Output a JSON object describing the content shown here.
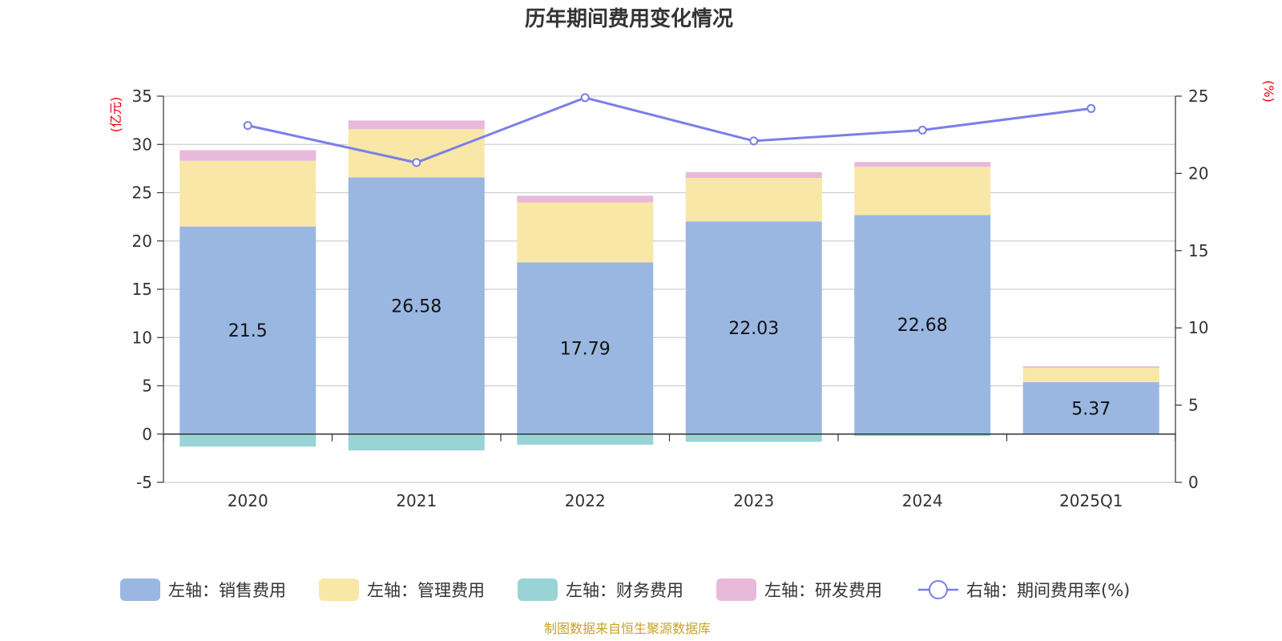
{
  "chart_data": {
    "type": "bar",
    "title": "历年期间费用变化情况",
    "categories": [
      "2020",
      "2021",
      "2022",
      "2023",
      "2024",
      "2025Q1"
    ],
    "series": [
      {
        "name": "左轴：销售费用",
        "axis": "left",
        "type": "bar",
        "color": "#9ab7e2",
        "values": [
          21.5,
          26.58,
          17.79,
          22.03,
          22.68,
          5.37
        ]
      },
      {
        "name": "左轴：管理费用",
        "axis": "left",
        "type": "bar",
        "color": "#f8e7a6",
        "values": [
          6.8,
          5.0,
          6.2,
          4.5,
          5.0,
          1.5
        ]
      },
      {
        "name": "左轴：财务费用",
        "axis": "left",
        "type": "bar",
        "color": "#98d4d6",
        "values": [
          -1.3,
          -1.7,
          -1.1,
          -0.8,
          -0.2,
          -0.05
        ]
      },
      {
        "name": "左轴：研发费用",
        "axis": "left",
        "type": "bar",
        "color": "#e8b9db",
        "values": [
          1.1,
          0.9,
          0.7,
          0.6,
          0.5,
          0.15
        ]
      },
      {
        "name": "右轴：期间费用率(%)",
        "axis": "right",
        "type": "line",
        "color": "#7b7fe8",
        "values": [
          23.1,
          20.7,
          24.9,
          22.1,
          22.8,
          24.2
        ]
      }
    ],
    "bar_labels": [
      "21.5",
      "26.58",
      "17.79",
      "22.03",
      "22.68",
      "5.37"
    ],
    "left_axis": {
      "unit": "(亿元)",
      "ylim": [
        -5,
        35
      ],
      "ticks": [
        -5,
        0,
        5,
        10,
        15,
        20,
        25,
        30,
        35
      ]
    },
    "right_axis": {
      "unit": "(%)",
      "ylim": [
        0,
        25
      ],
      "ticks": [
        0,
        5,
        10,
        15,
        20,
        25
      ]
    },
    "grid": true,
    "legend_position": "bottom"
  },
  "source": "制图数据来自恒生聚源数据库"
}
